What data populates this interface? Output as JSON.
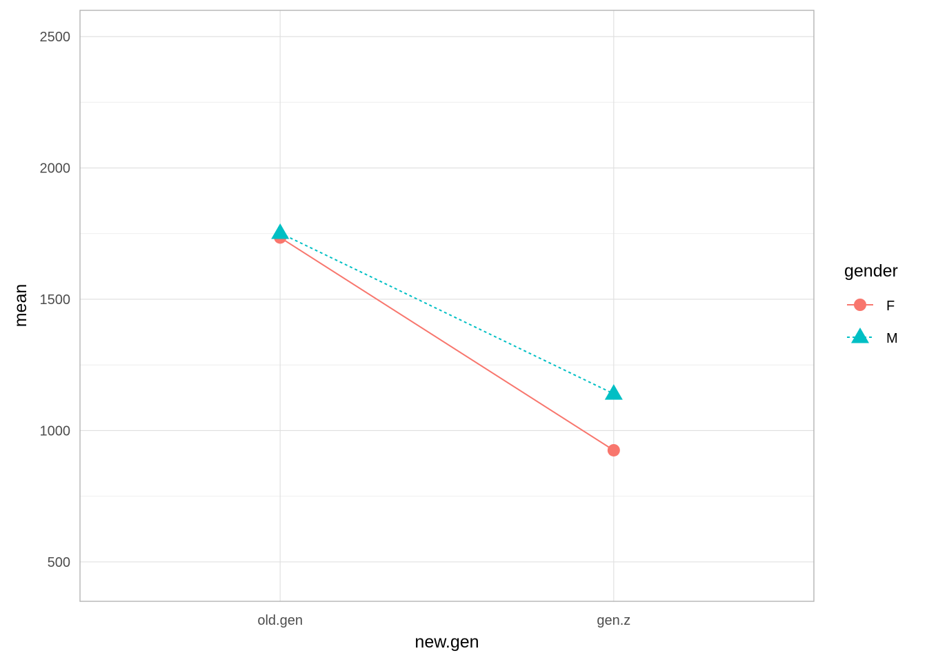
{
  "chart_data": {
    "type": "line",
    "categories": [
      "old.gen",
      "gen.z"
    ],
    "xlabel": "new.gen",
    "ylabel": "mean",
    "ylim": [
      350,
      2600
    ],
    "y_ticks": [
      500,
      1000,
      1500,
      2000,
      2500
    ],
    "y_tick_labels": [
      "500",
      "1000",
      "1500",
      "2000",
      "2500"
    ],
    "grid": true,
    "legend": {
      "title": "gender",
      "position": "right"
    },
    "series": [
      {
        "name": "F",
        "values": [
          1735,
          925
        ],
        "color": "#f8766d",
        "marker": "circle",
        "line_style": "solid"
      },
      {
        "name": "M",
        "values": [
          1752,
          1140
        ],
        "color": "#00bfc4",
        "marker": "triangle",
        "line_style": "dotted"
      }
    ]
  }
}
